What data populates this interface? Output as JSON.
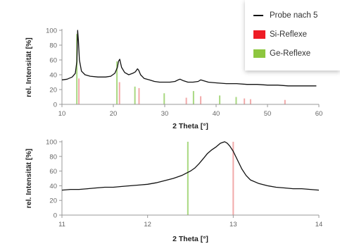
{
  "chart_data": [
    {
      "type": "line",
      "xlabel": "2 Theta [°]",
      "ylabel": "rel. Intensität [%]",
      "xlim": [
        10,
        60
      ],
      "ylim": [
        0,
        100
      ],
      "xticks": [
        "10",
        "20",
        "30",
        "40",
        "50",
        "60"
      ],
      "yticks": [
        "0",
        "20",
        "40",
        "60",
        "80",
        "100"
      ],
      "series": [
        {
          "name": "Probe nach 5",
          "color": "#111111",
          "x": [
            10,
            11,
            12,
            12.6,
            12.9,
            13.05,
            13.2,
            13.4,
            13.8,
            14.5,
            15.5,
            17,
            18.5,
            19.5,
            20.3,
            20.8,
            21.0,
            21.25,
            21.6,
            22.2,
            23,
            23.8,
            24.3,
            24.7,
            24.95,
            25.3,
            26,
            27,
            28,
            29,
            30,
            31,
            32,
            32.6,
            33,
            33.6,
            34.5,
            35.5,
            36.5,
            37,
            37.5,
            38.5,
            40,
            42,
            44,
            46,
            48,
            50,
            52,
            54,
            56,
            58,
            59.5
          ],
          "y": [
            33,
            34,
            37,
            42,
            58,
            100,
            86,
            60,
            45,
            40,
            38,
            37,
            37,
            38,
            42,
            50,
            58,
            61,
            50,
            43,
            40,
            42,
            44,
            48,
            46,
            40,
            35,
            33,
            31,
            30,
            30,
            30,
            31,
            33,
            34,
            32,
            30,
            30,
            31,
            33,
            32,
            30,
            29,
            28,
            28,
            27,
            27,
            26,
            26,
            25,
            25,
            25,
            25
          ]
        }
      ],
      "reference_lines": [
        {
          "name": "Si-Reflexe",
          "color": "#f2aaaa",
          "x": [
            13.3,
            21.2,
            25.0,
            34.2,
            37.0,
            45.5,
            46.7,
            53.4
          ],
          "height": [
            35,
            30,
            22,
            9,
            11,
            8,
            7,
            6
          ]
        },
        {
          "name": "Ge-Reflexe",
          "color": "#a8d880",
          "x": [
            12.9,
            20.7,
            24.2,
            29.9,
            35.6,
            40.7,
            43.9
          ],
          "height": [
            95,
            58,
            24,
            15,
            18,
            12,
            10
          ]
        }
      ]
    },
    {
      "type": "line",
      "xlabel": "2 Theta [°]",
      "ylabel": "rel. Intensität [%]",
      "xlim": [
        11,
        14
      ],
      "ylim": [
        0,
        100
      ],
      "xticks": [
        "11",
        "12",
        "13",
        "14"
      ],
      "yticks": [
        "0",
        "20",
        "40",
        "60",
        "80",
        "100"
      ],
      "series": [
        {
          "name": "Probe nach 5",
          "color": "#111111",
          "x": [
            11,
            11.1,
            11.2,
            11.3,
            11.4,
            11.5,
            11.6,
            11.7,
            11.8,
            11.9,
            12,
            12.1,
            12.2,
            12.3,
            12.4,
            12.5,
            12.55,
            12.6,
            12.65,
            12.7,
            12.75,
            12.8,
            12.85,
            12.9,
            12.93,
            12.96,
            13,
            13.05,
            13.1,
            13.15,
            13.2,
            13.3,
            13.4,
            13.5,
            13.6,
            13.7,
            13.8,
            13.9,
            14
          ],
          "y": [
            34,
            35,
            35,
            36,
            37,
            38,
            38,
            39,
            40,
            41,
            42,
            44,
            47,
            50,
            54,
            60,
            64,
            70,
            77,
            84,
            89,
            93,
            98,
            100,
            98,
            94,
            87,
            75,
            63,
            54,
            48,
            43,
            40,
            38,
            37,
            36,
            36,
            35,
            34
          ]
        }
      ],
      "reference_lines": [
        {
          "name": "Si-Reflexe",
          "color": "#f2aaaa",
          "x": [
            13.0
          ],
          "height": [
            100
          ]
        },
        {
          "name": "Ge-Reflexe",
          "color": "#a8d880",
          "x": [
            12.47
          ],
          "height": [
            100
          ]
        }
      ]
    }
  ],
  "legend": {
    "items": [
      {
        "label": "Probe nach 5",
        "kind": "line",
        "color": "#111111"
      },
      {
        "label": "Si-Reflexe",
        "kind": "swatch",
        "color": "#ee1c25"
      },
      {
        "label": "Ge-Reflexe",
        "kind": "swatch",
        "color": "#8dc63f"
      }
    ]
  }
}
